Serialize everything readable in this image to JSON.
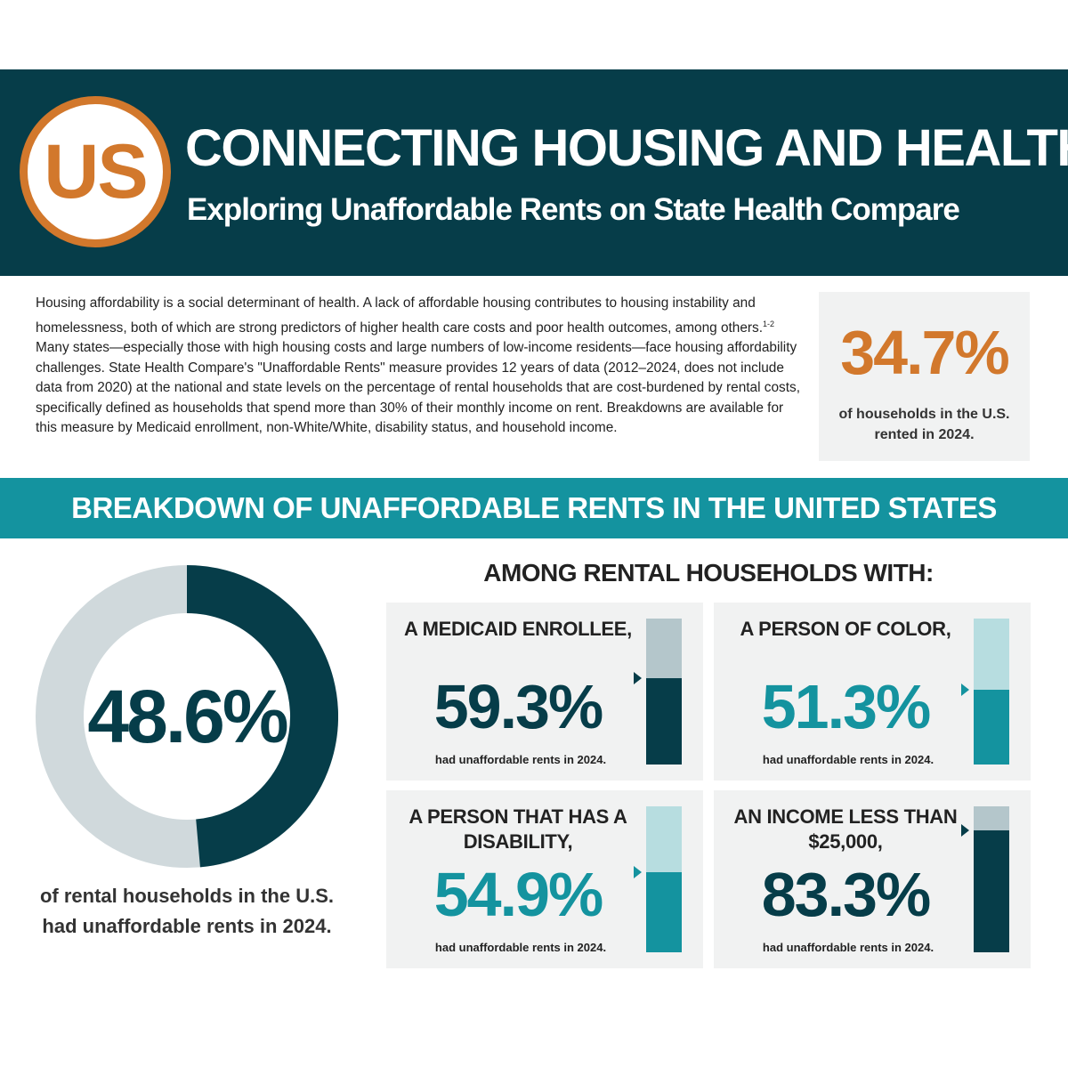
{
  "header": {
    "logo_text": "US",
    "title": "CONNECTING HOUSING AND HEALTH",
    "subtitle": "Exploring Unaffordable Rents on State Health Compare"
  },
  "intro": {
    "text_1": "Housing affordability is a social determinant of health. A lack of affordable housing contributes to housing instability and homelessness, both of which are strong predictors of higher health care costs and poor health outcomes, among others.",
    "footnote": "1-2",
    "text_2": " Many states—especially those with high housing costs and large numbers of low-income residents—face housing affordability challenges. State Health Compare's \"Unaffordable Rents\" measure provides 12 years of data (2012–2024, does not include data from 2020) at the national and state levels on the percentage of rental households that are cost-burdened by rental costs, specifically defined as households that spend more than 30% of their monthly income on rent. Breakdowns are available for this measure by Medicaid enrollment, non-White/White, disability status, and household income."
  },
  "rented_stat": {
    "value": "34.7%",
    "caption": "of households in the U.S. rented in 2024."
  },
  "section_title": "BREAKDOWN OF UNAFFORDABLE RENTS IN THE UNITED STATES",
  "among_title": "AMONG RENTAL HOUSEHOLDS WITH:",
  "colors": {
    "dark_teal": "#063d49",
    "teal": "#14939f",
    "orange": "#d2782c",
    "donut_track": "#d0d9dc",
    "dark_track": "#b4c6cb",
    "light_track": "#b7dde0"
  },
  "chart_data": [
    {
      "type": "pie",
      "label": "48.6%",
      "value": 48.6,
      "caption": "of rental households in the U.S. had unaffordable rents in 2024."
    },
    {
      "type": "bar",
      "cards": [
        {
          "label": "A MEDICAID ENROLLEE,",
          "value_text": "59.3%",
          "value": 59.3,
          "note": "had unaffordable rents in 2024.",
          "theme": "dark"
        },
        {
          "label": "A PERSON OF COLOR,",
          "value_text": "51.3%",
          "value": 51.3,
          "note": "had unaffordable rents in 2024.",
          "theme": "teal"
        },
        {
          "label": "A PERSON THAT HAS A DISABILITY,",
          "value_text": "54.9%",
          "value": 54.9,
          "note": "had unaffordable rents in 2024.",
          "theme": "teal"
        },
        {
          "label": "AN INCOME LESS THAN $25,000,",
          "value_text": "83.3%",
          "value": 83.3,
          "note": "had unaffordable rents in 2024.",
          "theme": "dark"
        }
      ],
      "ylim": [
        0,
        100
      ]
    }
  ]
}
